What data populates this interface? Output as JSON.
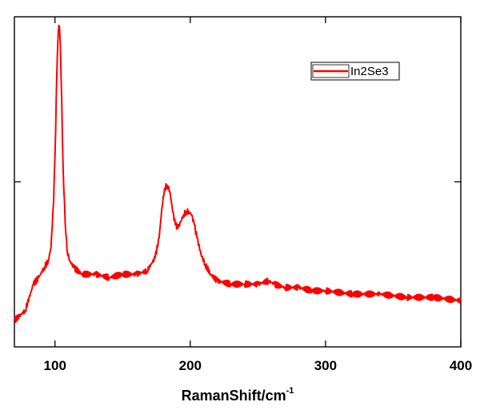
{
  "chart_data": {
    "type": "line",
    "title": "",
    "xlabel": "RamanShift/cm",
    "xlabel_superscript": "-1",
    "ylabel": "",
    "xlim": [
      70,
      400
    ],
    "ylim": [
      0,
      100
    ],
    "x_ticks": [
      100,
      200,
      300,
      400
    ],
    "y_tick_labels_shown": false,
    "grid": false,
    "legend_position": "top-right",
    "series": [
      {
        "name": "In2Se3",
        "color": "#ff0000",
        "x": [
          70,
          78,
          84,
          88,
          92,
          95,
          97,
          99,
          100.5,
          101.5,
          102.5,
          103.3,
          104,
          105,
          106,
          107.5,
          109,
          111,
          114,
          120,
          130,
          140,
          150,
          160,
          168,
          174,
          177,
          179,
          181,
          183,
          185,
          187,
          189,
          191,
          193,
          195,
          197,
          199,
          201,
          203,
          205,
          208,
          211,
          215,
          220,
          230,
          240,
          250,
          258,
          262,
          270,
          280,
          290,
          300,
          320,
          340,
          360,
          380,
          400
        ],
        "y": [
          8,
          11,
          19,
          21,
          24,
          26,
          30,
          44,
          66,
          85,
          96,
          97,
          91,
          74,
          54,
          38,
          29,
          26,
          24,
          22,
          22,
          21,
          22,
          22,
          23,
          27,
          33,
          42,
          48,
          49,
          47,
          41,
          37,
          36,
          38,
          40,
          41,
          41,
          40,
          37,
          33,
          28,
          25,
          22,
          20,
          19,
          19,
          19,
          20,
          19,
          18,
          18,
          17,
          17,
          16,
          16,
          15,
          15,
          14
        ]
      }
    ]
  }
}
